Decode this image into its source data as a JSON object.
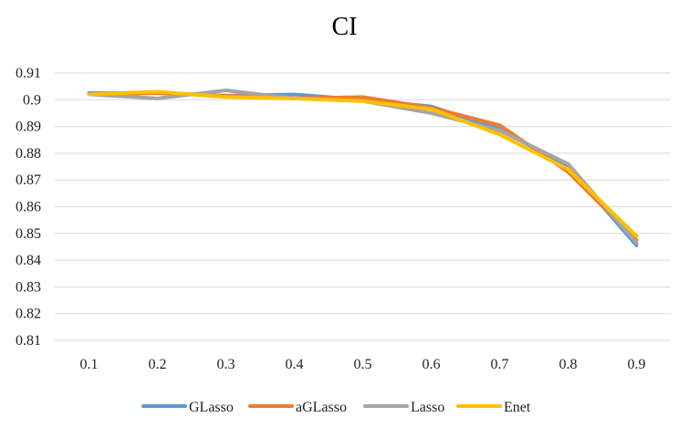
{
  "chart_data": {
    "type": "line",
    "title": "CI",
    "xlabel": "",
    "ylabel": "",
    "categories": [
      "0.1",
      "0.2",
      "0.3",
      "0.4",
      "0.5",
      "0.6",
      "0.7",
      "0.8",
      "0.9"
    ],
    "ylim": [
      0.81,
      0.91
    ],
    "yticks": [
      "0.81",
      "0.82",
      "0.83",
      "0.84",
      "0.85",
      "0.86",
      "0.87",
      "0.88",
      "0.89",
      "0.9",
      "0.91"
    ],
    "grid": true,
    "legend_position": "bottom",
    "series": [
      {
        "name": "GLasso",
        "color": "#5B9BD5",
        "values": [
          0.9025,
          0.9025,
          0.9015,
          0.902,
          0.9,
          0.8975,
          0.889,
          0.875,
          0.8455
        ]
      },
      {
        "name": "aGLasso",
        "color": "#ED7D31",
        "values": [
          0.902,
          0.9025,
          0.9015,
          0.9005,
          0.901,
          0.897,
          0.8905,
          0.873,
          0.8475
        ]
      },
      {
        "name": "Lasso",
        "color": "#A5A5A5",
        "values": [
          0.902,
          0.9005,
          0.9035,
          0.9005,
          0.8995,
          0.895,
          0.8885,
          0.876,
          0.8465
        ]
      },
      {
        "name": "Enet",
        "color": "#FFC000",
        "values": [
          0.902,
          0.903,
          0.901,
          0.9005,
          0.8995,
          0.8965,
          0.887,
          0.874,
          0.849
        ]
      }
    ]
  }
}
